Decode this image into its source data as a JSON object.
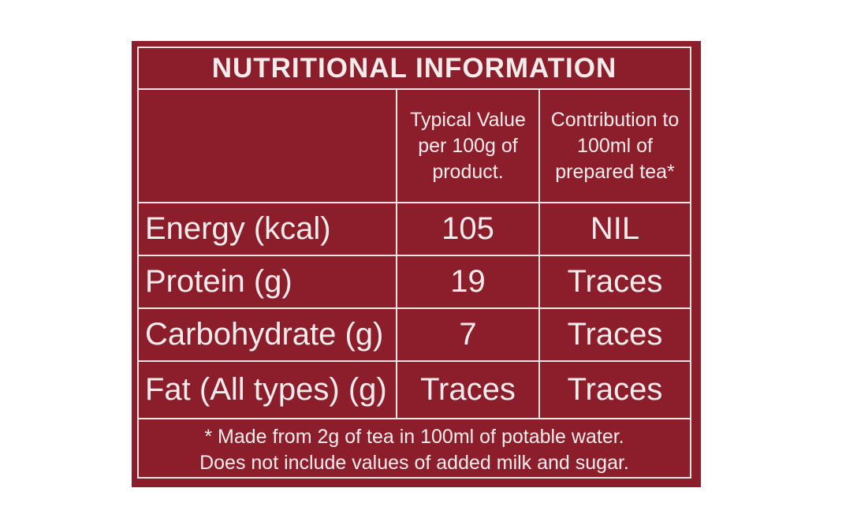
{
  "label": {
    "title": "NUTRITIONAL INFORMATION",
    "columns": [
      "",
      "Typical Value per 100g of product.",
      "Contribution to 100ml of prepared tea*"
    ],
    "rows": [
      {
        "nutrient": "Energy (kcal)",
        "per_100g": "105",
        "per_100ml": "NIL"
      },
      {
        "nutrient": "Protein (g)",
        "per_100g": "19",
        "per_100ml": "Traces"
      },
      {
        "nutrient": "Carbohydrate (g)",
        "per_100g": "7",
        "per_100ml": "Traces"
      },
      {
        "nutrient": "Fat (All types) (g)",
        "per_100g": "Traces",
        "per_100ml": "Traces"
      }
    ],
    "footnote_line1": "* Made from 2g of tea in 100ml of potable water.",
    "footnote_line2": "Does not include values of added milk and sugar.",
    "colors": {
      "background": "#8c1e2b",
      "text": "#f4ecec",
      "rules": "#efe4e4"
    }
  }
}
